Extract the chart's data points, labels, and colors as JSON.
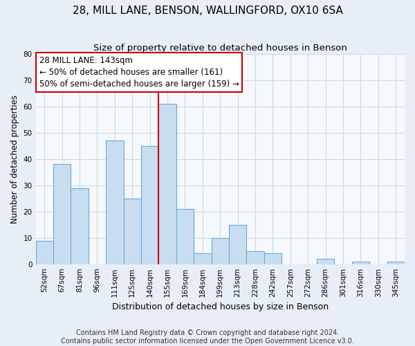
{
  "title": "28, MILL LANE, BENSON, WALLINGFORD, OX10 6SA",
  "subtitle": "Size of property relative to detached houses in Benson",
  "xlabel": "Distribution of detached houses by size in Benson",
  "ylabel": "Number of detached properties",
  "bar_labels": [
    "52sqm",
    "67sqm",
    "81sqm",
    "96sqm",
    "111sqm",
    "125sqm",
    "140sqm",
    "155sqm",
    "169sqm",
    "184sqm",
    "199sqm",
    "213sqm",
    "228sqm",
    "242sqm",
    "257sqm",
    "272sqm",
    "286sqm",
    "301sqm",
    "316sqm",
    "330sqm",
    "345sqm"
  ],
  "bar_values": [
    9,
    38,
    29,
    0,
    47,
    25,
    45,
    61,
    21,
    4,
    10,
    15,
    5,
    4,
    0,
    0,
    2,
    0,
    1,
    0,
    1
  ],
  "bar_color": "#c8ddf0",
  "bar_edge_color": "#6aaad4",
  "vline_color": "#cc0000",
  "vline_position": 6.5,
  "ylim": [
    0,
    80
  ],
  "yticks": [
    0,
    10,
    20,
    30,
    40,
    50,
    60,
    70,
    80
  ],
  "annotation_title": "28 MILL LANE: 143sqm",
  "annotation_line1": "← 50% of detached houses are smaller (161)",
  "annotation_line2": "50% of semi-detached houses are larger (159) →",
  "annotation_box_facecolor": "#ffffff",
  "annotation_box_edgecolor": "#cc0000",
  "footer_line1": "Contains HM Land Registry data © Crown copyright and database right 2024.",
  "footer_line2": "Contains public sector information licensed under the Open Government Licence v3.0.",
  "fig_facecolor": "#e8eef8",
  "plot_facecolor": "#f5f8fd",
  "grid_color": "#d0d8e8",
  "title_fontsize": 11,
  "subtitle_fontsize": 9.5,
  "xlabel_fontsize": 9,
  "ylabel_fontsize": 8.5,
  "tick_fontsize": 7.5,
  "annotation_fontsize": 8.5,
  "footer_fontsize": 7
}
